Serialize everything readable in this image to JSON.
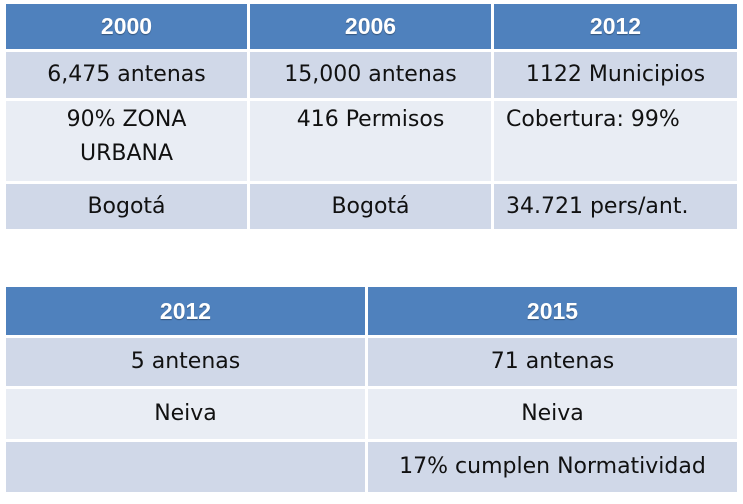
{
  "table1": {
    "headers": [
      "2000",
      "2006",
      "2012"
    ],
    "rows": [
      [
        "6,475 antenas",
        "15,000 antenas",
        "1122 Municipios"
      ],
      [
        "90% ZONA URBANA",
        "416  Permisos",
        "Cobertura: 99%"
      ],
      [
        "Bogotá",
        "Bogotá",
        "34.721  pers/ant."
      ]
    ]
  },
  "table2": {
    "headers": [
      "2012",
      "2015"
    ],
    "rows": [
      [
        "5 antenas",
        "71 antenas"
      ],
      [
        "Neiva",
        "Neiva"
      ],
      [
        "",
        "17% cumplen Normatividad"
      ]
    ]
  },
  "colors": {
    "header": "#4f81bd",
    "row_dark": "#d0d8e8",
    "row_light": "#e9edf4"
  }
}
